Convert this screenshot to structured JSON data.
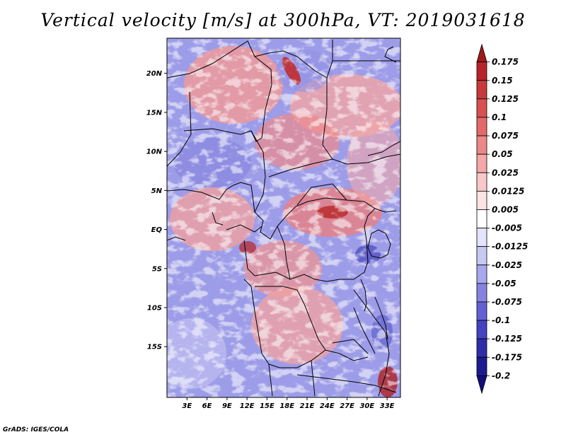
{
  "title": "Vertical velocity [m/s] at 300hPa, VT: 2019031618",
  "footer": "GrADS: IGES/COLA",
  "map": {
    "lat_range": [
      -21.5,
      24.5
    ],
    "lon_range": [
      0,
      35
    ],
    "lat_labels": [
      {
        "lat": 20,
        "text": "20N"
      },
      {
        "lat": 15,
        "text": "15N"
      },
      {
        "lat": 10,
        "text": "10N"
      },
      {
        "lat": 5,
        "text": "5N"
      },
      {
        "lat": 0,
        "text": "EQ"
      },
      {
        "lat": -5,
        "text": "5S"
      },
      {
        "lat": -10,
        "text": "10S"
      },
      {
        "lat": -15,
        "text": "15S"
      }
    ],
    "lon_labels": [
      {
        "lon": 3,
        "text": "3E"
      },
      {
        "lon": 6,
        "text": "6E"
      },
      {
        "lon": 9,
        "text": "9E"
      },
      {
        "lon": 12,
        "text": "12E"
      },
      {
        "lon": 15,
        "text": "15E"
      },
      {
        "lon": 18,
        "text": "18E"
      },
      {
        "lon": 21,
        "text": "21E"
      },
      {
        "lon": 24,
        "text": "24E"
      },
      {
        "lon": 27,
        "text": "27E"
      },
      {
        "lon": 30,
        "text": "30E"
      },
      {
        "lon": 33,
        "text": "33E"
      }
    ]
  },
  "colorbar": {
    "levels": [
      "0.175",
      "0.15",
      "0.125",
      "0.1",
      "0.075",
      "0.05",
      "0.025",
      "0.0125",
      "0.005",
      "-0.005",
      "-0.0125",
      "-0.025",
      "-0.05",
      "-0.075",
      "-0.1",
      "-0.125",
      "-0.175",
      "-0.2"
    ],
    "colors": [
      "#a01a1a",
      "#b8232a",
      "#c83a3a",
      "#d85050",
      "#e46a6a",
      "#ec8888",
      "#f4a8a8",
      "#f8c8c8",
      "#fce4e4",
      "#ffffff",
      "#e4e4fc",
      "#c8c8f4",
      "#a8a8ec",
      "#8484e0",
      "#6262d4",
      "#4444c0",
      "#2e2ea8",
      "#1c1c90",
      "#10107a"
    ]
  }
}
